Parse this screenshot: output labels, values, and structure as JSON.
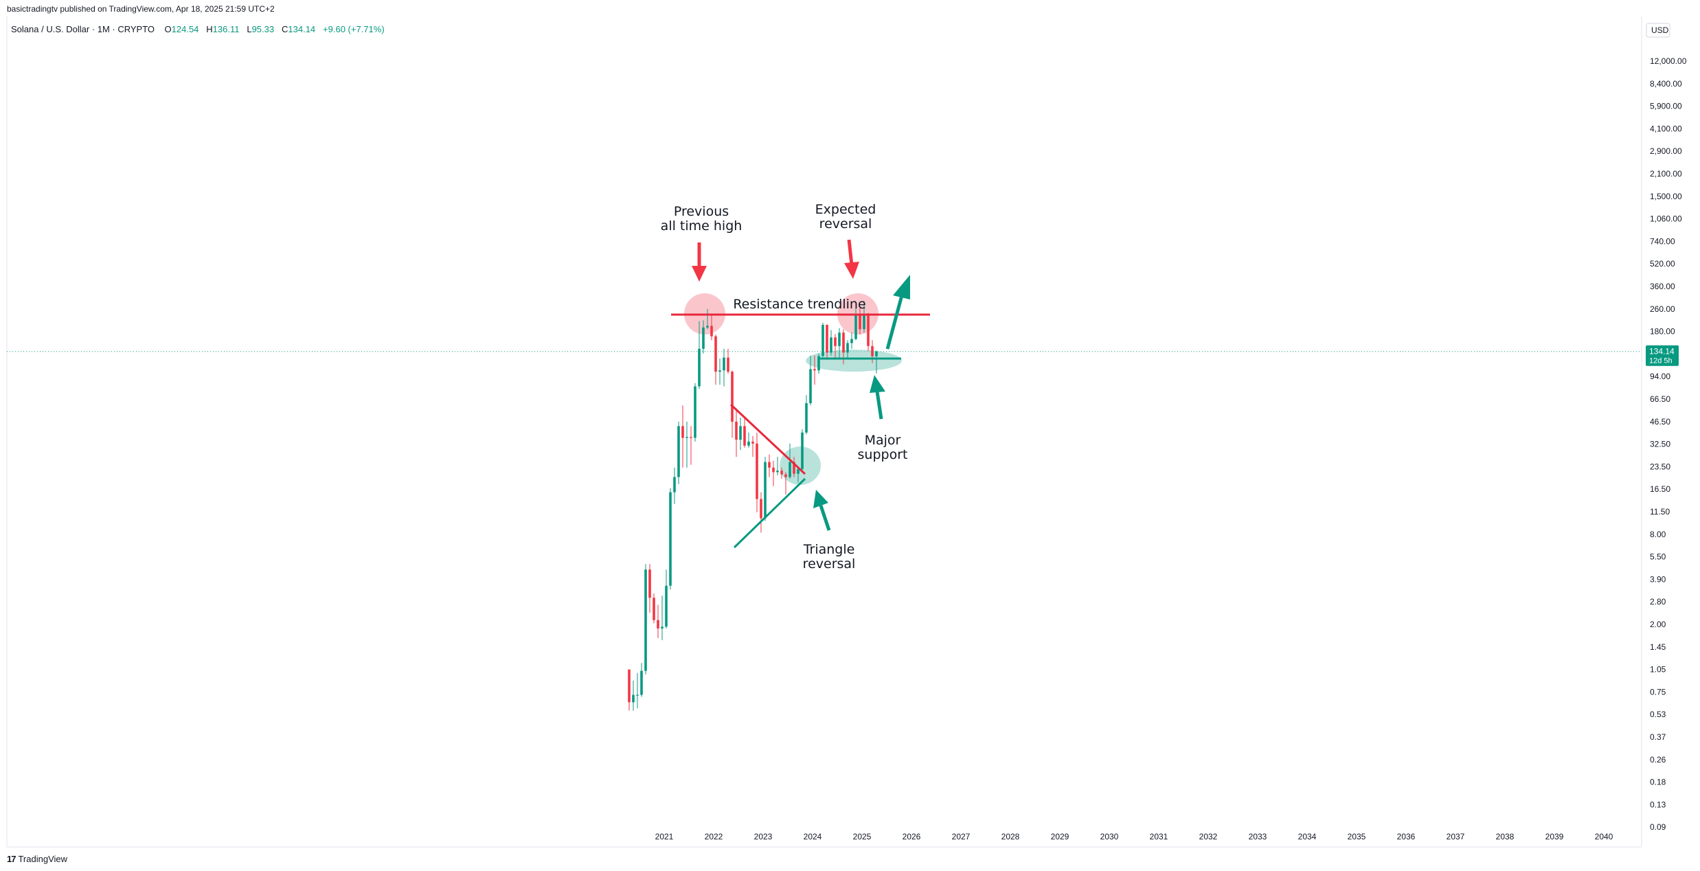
{
  "header": {
    "publisher": "basictradingtv published on TradingView.com, Apr 18, 2025 21:59 UTC+2",
    "symbol": "Solana / U.S. Dollar · 1M · CRYPTO",
    "open_key": "O",
    "open": "124.54",
    "high_key": "H",
    "high": "136.11",
    "low_key": "L",
    "low": "95.33",
    "close_key": "C",
    "close": "134.14",
    "change": "+9.60 (+7.71%)"
  },
  "footer": {
    "brand": "TradingView",
    "brand_mark": "17"
  },
  "colors": {
    "up": "#089981",
    "down": "#f23645",
    "resistance": "#e8273c",
    "support_fill": "#7fcbbd",
    "ath_fill": "#f7a8b0",
    "price_label_bg": "#089981",
    "text": "#131722"
  },
  "chart_data": {
    "type": "candlestick",
    "title": "Solana / U.S. Dollar · 1M · CRYPTO",
    "currency_label": "USD",
    "y_scale": "log",
    "price_ticks": [
      "12,000.00",
      "8,400.00",
      "5,900.00",
      "4,100.00",
      "2,900.00",
      "2,100.00",
      "1,500.00",
      "1,060.00",
      "740.00",
      "520.00",
      "360.00",
      "260.00",
      "180.00",
      "94.00",
      "66.50",
      "46.50",
      "32.50",
      "23.50",
      "16.50",
      "11.50",
      "8.00",
      "5.50",
      "3.90",
      "2.80",
      "2.00",
      "1.45",
      "1.05",
      "0.75",
      "0.53",
      "0.37",
      "0.26",
      "0.18",
      "0.13",
      "0.09"
    ],
    "x_ticks": [
      "2021",
      "2022",
      "2023",
      "2024",
      "2025",
      "2026",
      "2027",
      "2028",
      "2029",
      "2030",
      "2031",
      "2032",
      "2033",
      "2034",
      "2035",
      "2036",
      "2037",
      "2038",
      "2039",
      "2040"
    ],
    "last_price": {
      "value": "134.14",
      "countdown": "12d 5h"
    },
    "candles": [
      {
        "date": "2020-04",
        "o": 0.95,
        "h": 0.95,
        "l": 0.5,
        "c": 0.57
      },
      {
        "date": "2020-05",
        "o": 0.57,
        "h": 0.8,
        "l": 0.5,
        "c": 0.64
      },
      {
        "date": "2020-06",
        "o": 0.64,
        "h": 0.9,
        "l": 0.52,
        "c": 0.64
      },
      {
        "date": "2020-07",
        "o": 0.64,
        "h": 1.05,
        "l": 0.62,
        "c": 0.93
      },
      {
        "date": "2020-08",
        "o": 0.93,
        "h": 4.9,
        "l": 0.88,
        "c": 4.5
      },
      {
        "date": "2020-09",
        "o": 4.5,
        "h": 4.9,
        "l": 2.3,
        "c": 2.9
      },
      {
        "date": "2020-10",
        "o": 2.9,
        "h": 3.1,
        "l": 1.95,
        "c": 2.05
      },
      {
        "date": "2020-11",
        "o": 2.05,
        "h": 2.6,
        "l": 1.55,
        "c": 1.8
      },
      {
        "date": "2020-12",
        "o": 1.8,
        "h": 3.0,
        "l": 1.5,
        "c": 1.85
      },
      {
        "date": "2021-01",
        "o": 1.85,
        "h": 4.5,
        "l": 1.8,
        "c": 3.5
      },
      {
        "date": "2021-02",
        "o": 3.5,
        "h": 16.0,
        "l": 3.3,
        "c": 15.0
      },
      {
        "date": "2021-03",
        "o": 15.0,
        "h": 22.0,
        "l": 12.5,
        "c": 19.0
      },
      {
        "date": "2021-04",
        "o": 19.0,
        "h": 45.0,
        "l": 17.0,
        "c": 42.0
      },
      {
        "date": "2021-05",
        "o": 42.0,
        "h": 58.0,
        "l": 22.0,
        "c": 35.0
      },
      {
        "date": "2021-06",
        "o": 35.0,
        "h": 45.0,
        "l": 22.0,
        "c": 35.5
      },
      {
        "date": "2021-07",
        "o": 35.5,
        "h": 42.0,
        "l": 23.0,
        "c": 35.0
      },
      {
        "date": "2021-08",
        "o": 35.0,
        "h": 82.0,
        "l": 33.0,
        "c": 78.0
      },
      {
        "date": "2021-09",
        "o": 78.0,
        "h": 215.0,
        "l": 75.0,
        "c": 140.0
      },
      {
        "date": "2021-10",
        "o": 140.0,
        "h": 218.0,
        "l": 130.0,
        "c": 195.0
      },
      {
        "date": "2021-11",
        "o": 195.0,
        "h": 260.0,
        "l": 190.0,
        "c": 200.0
      },
      {
        "date": "2021-12",
        "o": 200.0,
        "h": 235.0,
        "l": 160.0,
        "c": 170.0
      },
      {
        "date": "2022-01",
        "o": 170.0,
        "h": 175.0,
        "l": 80.0,
        "c": 98.0
      },
      {
        "date": "2022-02",
        "o": 98.0,
        "h": 120.0,
        "l": 80.0,
        "c": 100.0
      },
      {
        "date": "2022-03",
        "o": 100.0,
        "h": 140.0,
        "l": 78.0,
        "c": 122.0
      },
      {
        "date": "2022-04",
        "o": 122.0,
        "h": 140.0,
        "l": 95.0,
        "c": 98.0
      },
      {
        "date": "2022-05",
        "o": 98.0,
        "h": 100.0,
        "l": 35.0,
        "c": 45.0
      },
      {
        "date": "2022-06",
        "o": 45.0,
        "h": 55.0,
        "l": 26.0,
        "c": 34.0
      },
      {
        "date": "2022-07",
        "o": 34.0,
        "h": 48.0,
        "l": 29.0,
        "c": 42.0
      },
      {
        "date": "2022-08",
        "o": 42.0,
        "h": 48.0,
        "l": 30.0,
        "c": 31.0
      },
      {
        "date": "2022-09",
        "o": 31.0,
        "h": 38.0,
        "l": 30.0,
        "c": 33.0
      },
      {
        "date": "2022-10",
        "o": 33.0,
        "h": 36.0,
        "l": 26.0,
        "c": 32.0
      },
      {
        "date": "2022-11",
        "o": 32.0,
        "h": 38.0,
        "l": 11.0,
        "c": 13.5
      },
      {
        "date": "2022-12",
        "o": 13.5,
        "h": 15.0,
        "l": 8.0,
        "c": 10.0
      },
      {
        "date": "2023-01",
        "o": 10.0,
        "h": 26.0,
        "l": 9.6,
        "c": 24.0
      },
      {
        "date": "2023-02",
        "o": 24.0,
        "h": 27.0,
        "l": 19.0,
        "c": 22.0
      },
      {
        "date": "2023-03",
        "o": 22.0,
        "h": 24.5,
        "l": 16.5,
        "c": 20.5
      },
      {
        "date": "2023-04",
        "o": 20.5,
        "h": 26.0,
        "l": 19.5,
        "c": 21.0
      },
      {
        "date": "2023-05",
        "o": 21.0,
        "h": 22.0,
        "l": 18.5,
        "c": 19.8
      },
      {
        "date": "2023-06",
        "o": 19.8,
        "h": 20.5,
        "l": 14.5,
        "c": 19.0
      },
      {
        "date": "2023-07",
        "o": 19.0,
        "h": 32.0,
        "l": 18.5,
        "c": 24.0
      },
      {
        "date": "2023-08",
        "o": 24.0,
        "h": 26.0,
        "l": 19.0,
        "c": 20.0
      },
      {
        "date": "2023-09",
        "o": 20.0,
        "h": 22.0,
        "l": 17.5,
        "c": 21.5
      },
      {
        "date": "2023-10",
        "o": 21.5,
        "h": 40.0,
        "l": 21.0,
        "c": 38.0
      },
      {
        "date": "2023-11",
        "o": 38.0,
        "h": 68.0,
        "l": 37.0,
        "c": 60.0
      },
      {
        "date": "2023-12",
        "o": 60.0,
        "h": 126.0,
        "l": 58.0,
        "c": 102.0
      },
      {
        "date": "2024-01",
        "o": 102.0,
        "h": 126.0,
        "l": 80.0,
        "c": 100.0
      },
      {
        "date": "2024-02",
        "o": 100.0,
        "h": 130.0,
        "l": 95.0,
        "c": 125.0
      },
      {
        "date": "2024-03",
        "o": 125.0,
        "h": 210.0,
        "l": 123.0,
        "c": 203.0
      },
      {
        "date": "2024-04",
        "o": 203.0,
        "h": 205.0,
        "l": 118.0,
        "c": 132.0
      },
      {
        "date": "2024-05",
        "o": 132.0,
        "h": 187.0,
        "l": 126.0,
        "c": 167.0
      },
      {
        "date": "2024-06",
        "o": 167.0,
        "h": 176.0,
        "l": 122.0,
        "c": 146.0
      },
      {
        "date": "2024-07",
        "o": 146.0,
        "h": 193.0,
        "l": 122.0,
        "c": 180.0
      },
      {
        "date": "2024-08",
        "o": 180.0,
        "h": 190.0,
        "l": 110.0,
        "c": 132.0
      },
      {
        "date": "2024-09",
        "o": 132.0,
        "h": 160.0,
        "l": 121.0,
        "c": 153.0
      },
      {
        "date": "2024-10",
        "o": 153.0,
        "h": 180.0,
        "l": 140.0,
        "c": 163.0
      },
      {
        "date": "2024-11",
        "o": 163.0,
        "h": 265.0,
        "l": 160.0,
        "c": 235.0
      },
      {
        "date": "2024-12",
        "o": 235.0,
        "h": 265.0,
        "l": 175.0,
        "c": 190.0
      },
      {
        "date": "2025-01",
        "o": 190.0,
        "h": 295.0,
        "l": 180.0,
        "c": 235.0
      },
      {
        "date": "2025-02",
        "o": 235.0,
        "h": 245.0,
        "l": 135.0,
        "c": 146.0
      },
      {
        "date": "2025-03",
        "o": 146.0,
        "h": 160.0,
        "l": 112.0,
        "c": 124.54
      },
      {
        "date": "2025-04",
        "o": 124.54,
        "h": 136.11,
        "l": 95.33,
        "c": 134.14
      }
    ],
    "annotations": [
      {
        "id": "previous-ath",
        "text": [
          "Previous",
          "all time high"
        ]
      },
      {
        "id": "expected-reversal",
        "text": [
          "Expected",
          "reversal"
        ]
      },
      {
        "id": "resistance",
        "text": [
          "Resistance trendline"
        ]
      },
      {
        "id": "major-support",
        "text": [
          "Major",
          "support"
        ]
      },
      {
        "id": "triangle-reversal",
        "text": [
          "Triangle",
          "reversal"
        ]
      }
    ]
  }
}
